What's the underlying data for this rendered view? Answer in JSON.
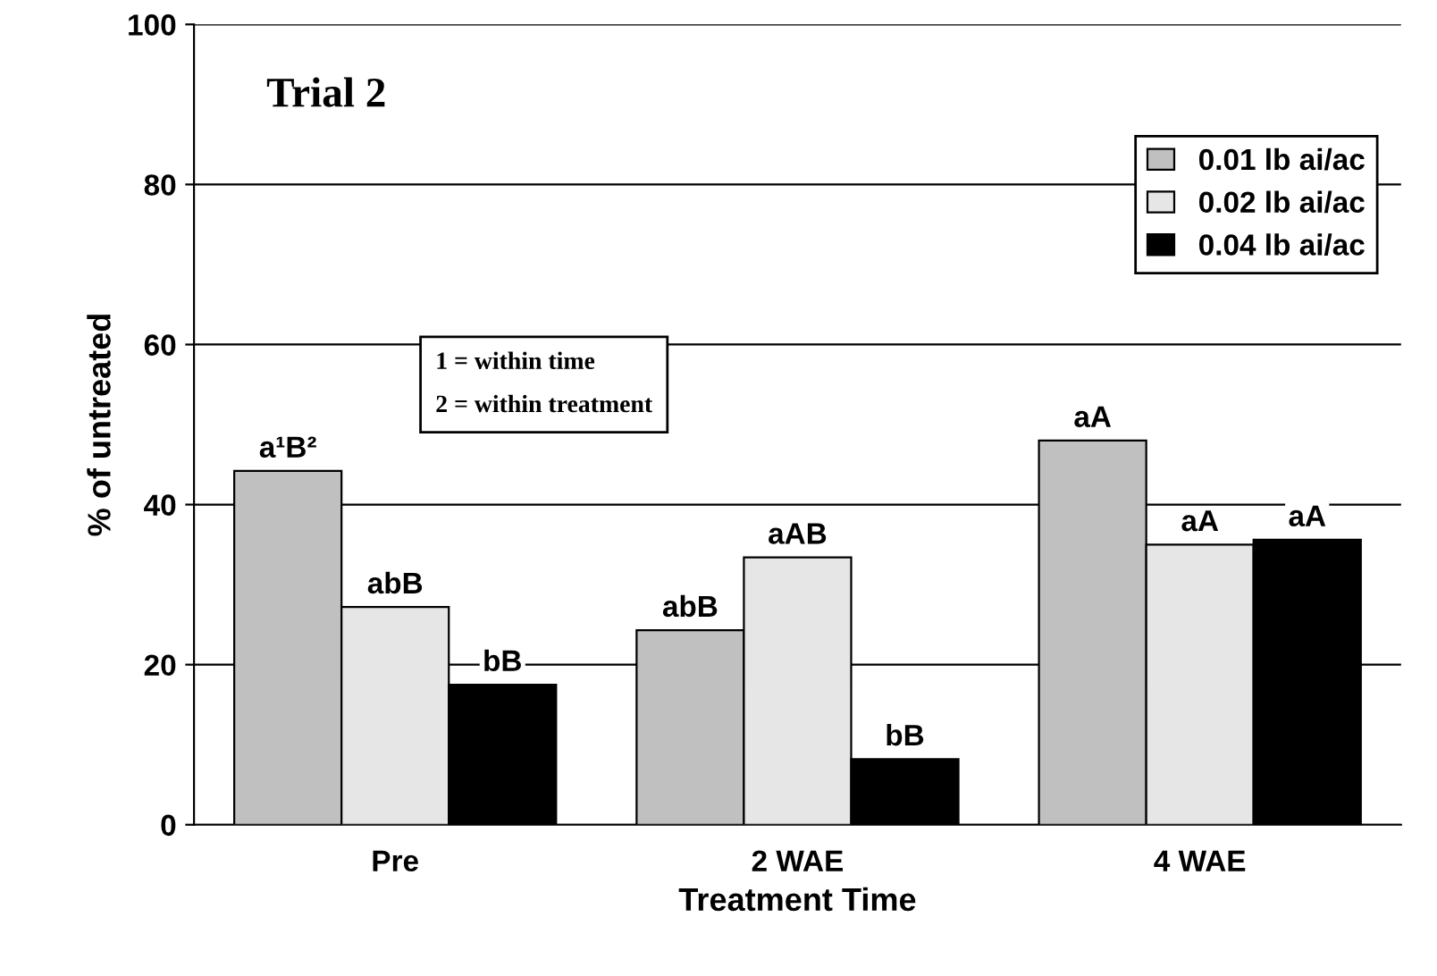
{
  "chart_data": {
    "type": "bar",
    "xlabel": "Treatment Time",
    "ylabel": "% of untreated",
    "categories": [
      "Pre",
      "2 WAE",
      "4 WAE"
    ],
    "series": [
      {
        "name": "0.01 lb ai/ac",
        "color": "#c0c0c0",
        "values": [
          44.2,
          24.3,
          48
        ],
        "value_labels": [
          "a¹B²",
          "abB",
          "aA"
        ]
      },
      {
        "name": "0.02 lb ai/ac",
        "color": "#e6e6e6",
        "values": [
          27.2,
          33.4,
          35
        ],
        "value_labels": [
          "abB",
          "aAB",
          "aA"
        ]
      },
      {
        "name": "0.04 lb ai/ac",
        "color": "#000000",
        "values": [
          17.5,
          8.2,
          35.6
        ],
        "value_labels": [
          "bB",
          "bB",
          "aA"
        ]
      }
    ],
    "ylim": [
      0,
      100
    ],
    "yticks": [
      0,
      20,
      40,
      60,
      80,
      100
    ],
    "grid": "y",
    "legend": "top right",
    "annotations": [
      "Trial 2",
      "1 = within time\n2 = within treatment"
    ]
  }
}
